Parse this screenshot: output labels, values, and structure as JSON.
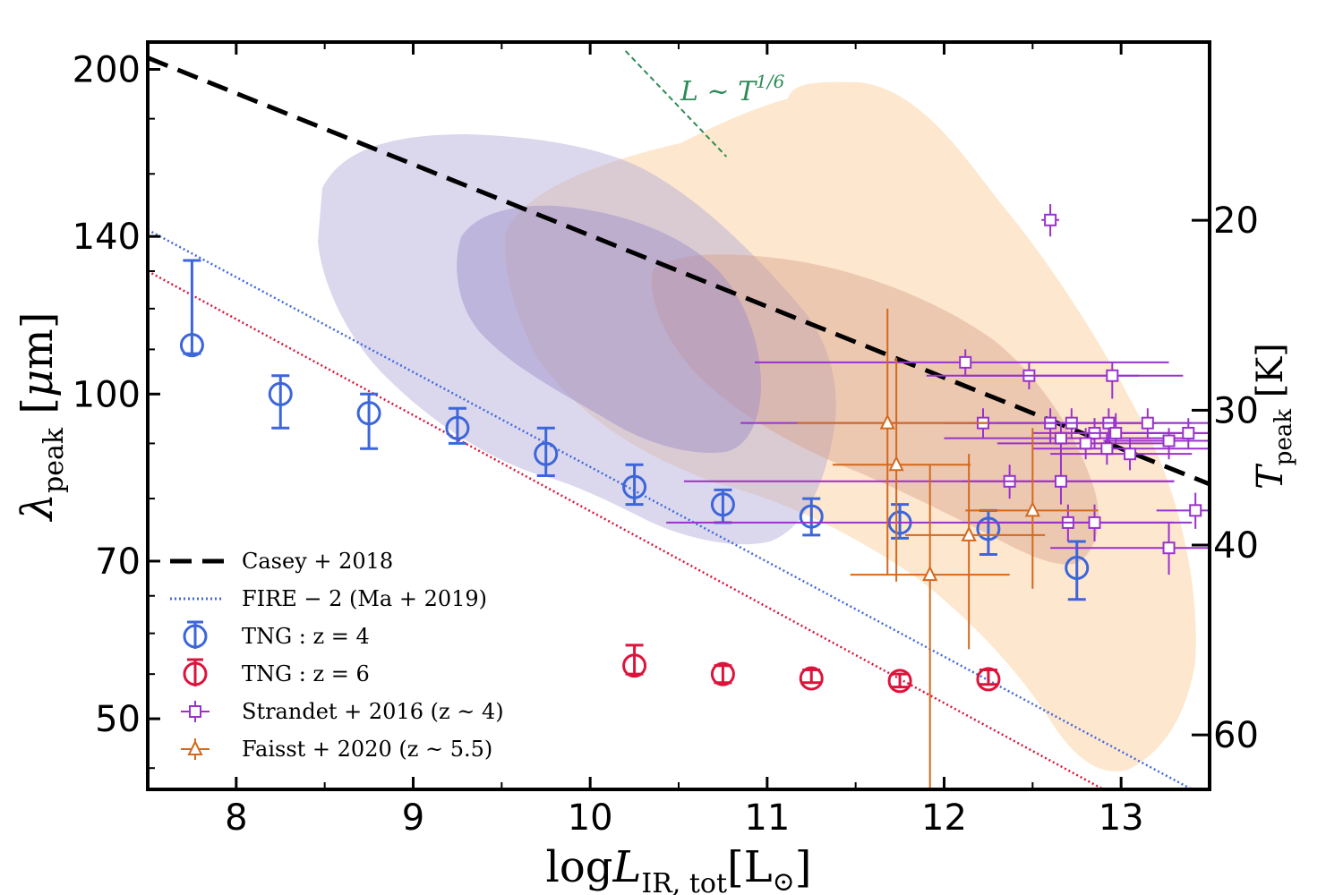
{
  "chart_data": {
    "type": "scatter",
    "xlabel": "logL_IR,tot[L⊙]",
    "ylabel": "λpeak [μm]",
    "y2label": "Tpeak [K]",
    "xlim": [
      7.5,
      13.5
    ],
    "ylim": [
      43,
      212
    ],
    "yscale": "log",
    "x_ticks": [
      "8",
      "9",
      "10",
      "11",
      "12",
      "13"
    ],
    "y_ticks": [
      {
        "value": 50,
        "label": "50"
      },
      {
        "value": 70,
        "label": "70"
      },
      {
        "value": 100,
        "label": "100"
      },
      {
        "value": 140,
        "label": "140"
      },
      {
        "value": 200,
        "label": "200"
      }
    ],
    "y2_ticks": [
      {
        "T": 20,
        "label": "20"
      },
      {
        "T": 30,
        "label": "30"
      },
      {
        "T": 40,
        "label": "40"
      },
      {
        "T": 60,
        "label": "60"
      }
    ],
    "annotation": {
      "text": "L ~ T^{1/6}",
      "line": [
        [
          10.2,
          208
        ],
        [
          10.77,
          166
        ]
      ],
      "color": "#2e8b57"
    },
    "colors": {
      "tng4": "#3c66d9",
      "tng6": "#dc143c",
      "strandet": "#9932cc",
      "faisst": "#d2691e",
      "casey": "#000000",
      "fire": "#4169e1",
      "fire6": "#dc143c",
      "contour_purple": "#b0a8d8",
      "contour_orange": "#fdd4a8"
    },
    "series": [
      {
        "name": "Casey+ 2018",
        "style": "dashed",
        "x": [
          7.5,
          13.5
        ],
        "y": [
          205,
          82.5
        ]
      },
      {
        "name": "FIRE−2 (Ma+ 2019)",
        "style": "dotted",
        "x": [
          7.5,
          13.4
        ],
        "y": [
          142,
          43
        ]
      },
      {
        "name": "FIRE−2 z=6",
        "style": "dotted",
        "legend": false,
        "x": [
          7.5,
          12.9
        ],
        "y": [
          130,
          43
        ]
      },
      {
        "name": "TNG: z=4",
        "marker": "circle",
        "points": [
          {
            "x": 7.75,
            "y": 111,
            "lo": 109,
            "hi": 133
          },
          {
            "x": 8.25,
            "y": 100,
            "lo": 93,
            "hi": 104
          },
          {
            "x": 8.75,
            "y": 96,
            "lo": 89,
            "hi": 100
          },
          {
            "x": 9.25,
            "y": 93,
            "lo": 90,
            "hi": 97
          },
          {
            "x": 9.75,
            "y": 88,
            "lo": 84,
            "hi": 93
          },
          {
            "x": 10.25,
            "y": 82,
            "lo": 79,
            "hi": 86
          },
          {
            "x": 10.75,
            "y": 79,
            "lo": 76,
            "hi": 81.5
          },
          {
            "x": 11.25,
            "y": 77,
            "lo": 74,
            "hi": 80
          },
          {
            "x": 11.75,
            "y": 76,
            "lo": 73.5,
            "hi": 79
          },
          {
            "x": 12.25,
            "y": 75,
            "lo": 71,
            "hi": 78
          },
          {
            "x": 12.75,
            "y": 69,
            "lo": 64.5,
            "hi": 73
          }
        ]
      },
      {
        "name": "TNG: z=6",
        "marker": "circle",
        "points": [
          {
            "x": 10.25,
            "y": 56,
            "lo": 55,
            "hi": 58.5
          },
          {
            "x": 10.75,
            "y": 55,
            "lo": 54,
            "hi": 56
          },
          {
            "x": 11.25,
            "y": 54.5,
            "lo": 54,
            "hi": 55.5
          },
          {
            "x": 11.75,
            "y": 54.2,
            "lo": 53.5,
            "hi": 55
          },
          {
            "x": 12.25,
            "y": 54.4,
            "lo": 53.8,
            "hi": 55.5
          }
        ]
      },
      {
        "name": "Strandet+ 2016 (z~4)",
        "marker": "square",
        "points": [
          {
            "x": 12.6,
            "y": 145,
            "xerr": 0.05,
            "yerr": 5
          },
          {
            "x": 12.12,
            "y": 107,
            "xlo": 10.93,
            "xhi": 13.27,
            "ylo": 104,
            "yhi": 110
          },
          {
            "x": 12.48,
            "y": 104,
            "xlo": 11.9,
            "xhi": 13.1,
            "ylo": 101,
            "yhi": 107
          },
          {
            "x": 12.95,
            "y": 104,
            "xlo": 12.1,
            "xhi": 13.35,
            "ylo": 99,
            "yhi": 107
          },
          {
            "x": 12.22,
            "y": 94,
            "xlo": 10.85,
            "xhi": 13.2,
            "ylo": 91,
            "yhi": 97
          },
          {
            "x": 12.6,
            "y": 94,
            "xlo": 12.0,
            "xhi": 13.1,
            "ylo": 90,
            "yhi": 97
          },
          {
            "x": 12.72,
            "y": 94,
            "xlo": 12.1,
            "xhi": 13.2,
            "ylo": 91,
            "yhi": 97
          },
          {
            "x": 12.93,
            "y": 94,
            "xlo": 12.3,
            "xhi": 13.4,
            "ylo": 89,
            "yhi": 97
          },
          {
            "x": 13.15,
            "y": 94,
            "xlo": 12.8,
            "xhi": 13.5,
            "ylo": 91,
            "yhi": 97
          },
          {
            "x": 12.66,
            "y": 91,
            "xlo": 12.0,
            "xhi": 13.4,
            "ylo": 88,
            "yhi": 94
          },
          {
            "x": 12.85,
            "y": 92,
            "xlo": 12.5,
            "xhi": 13.5,
            "ylo": 89,
            "yhi": 95
          },
          {
            "x": 12.97,
            "y": 92,
            "xlo": 12.7,
            "xhi": 13.4,
            "ylo": 90,
            "yhi": 96
          },
          {
            "x": 13.38,
            "y": 92,
            "xlo": 13.0,
            "xhi": 13.5,
            "ylo": 89,
            "yhi": 95
          },
          {
            "x": 12.8,
            "y": 90,
            "xlo": 12.3,
            "xhi": 13.3,
            "ylo": 87,
            "yhi": 93
          },
          {
            "x": 12.92,
            "y": 89,
            "xlo": 12.5,
            "xhi": 13.5,
            "ylo": 86,
            "yhi": 92
          },
          {
            "x": 13.05,
            "y": 88,
            "xlo": 12.6,
            "xhi": 13.4,
            "ylo": 85,
            "yhi": 91
          },
          {
            "x": 13.27,
            "y": 90.5,
            "xlo": 12.9,
            "xhi": 13.5,
            "ylo": 87,
            "yhi": 93
          },
          {
            "x": 12.37,
            "y": 83,
            "xlo": 10.53,
            "xhi": 13.3,
            "ylo": 80,
            "yhi": 86
          },
          {
            "x": 12.66,
            "y": 83,
            "xlo": 12.1,
            "xhi": 13.3,
            "ylo": 79,
            "yhi": 88
          },
          {
            "x": 12.7,
            "y": 76,
            "xlo": 10.43,
            "xhi": 13.3,
            "ylo": 73,
            "yhi": 79
          },
          {
            "x": 12.85,
            "y": 76,
            "xlo": 12.3,
            "xhi": 13.4,
            "ylo": 73,
            "yhi": 79
          },
          {
            "x": 13.42,
            "y": 78,
            "xlo": 13.2,
            "xhi": 13.5,
            "ylo": 75,
            "yhi": 81
          },
          {
            "x": 13.27,
            "y": 72,
            "xlo": 12.6,
            "xhi": 13.5,
            "ylo": 68,
            "yhi": 76
          }
        ]
      },
      {
        "name": "Faisst+ 2020 (z~5.5)",
        "marker": "triangle",
        "points": [
          {
            "x": 11.68,
            "y": 94,
            "xlo": 11.17,
            "xhi": 12.25,
            "ylo": 68,
            "yhi": 120
          },
          {
            "x": 11.73,
            "y": 86,
            "xlo": 11.37,
            "xhi": 12.15,
            "ylo": 67,
            "yhi": 108
          },
          {
            "x": 11.92,
            "y": 68,
            "xlo": 11.47,
            "xhi": 12.37,
            "ylo": 43,
            "yhi": 86
          },
          {
            "x": 12.14,
            "y": 74,
            "xlo": 11.78,
            "xhi": 12.57,
            "ylo": 58,
            "yhi": 88
          },
          {
            "x": 12.5,
            "y": 78,
            "xlo": 12.12,
            "xhi": 12.87,
            "ylo": 66,
            "yhi": 93
          }
        ]
      }
    ],
    "legend": [
      {
        "label": "Casey + 2018",
        "symbol": "dashed",
        "color": "#000000"
      },
      {
        "label": "FIRE − 2 (Ma + 2019)",
        "symbol": "dotted",
        "color": "#4169e1"
      },
      {
        "label": "TNG : z = 4",
        "symbol": "circle",
        "color": "#3c66d9"
      },
      {
        "label": "TNG : z = 6",
        "symbol": "circle",
        "color": "#dc143c"
      },
      {
        "label": "Strandet + 2016 (z ~ 4)",
        "symbol": "square",
        "color": "#9932cc"
      },
      {
        "label": "Faisst + 2020 (z ~ 5.5)",
        "symbol": "triangle",
        "color": "#d2691e"
      }
    ],
    "legend_position": "lower-left"
  }
}
